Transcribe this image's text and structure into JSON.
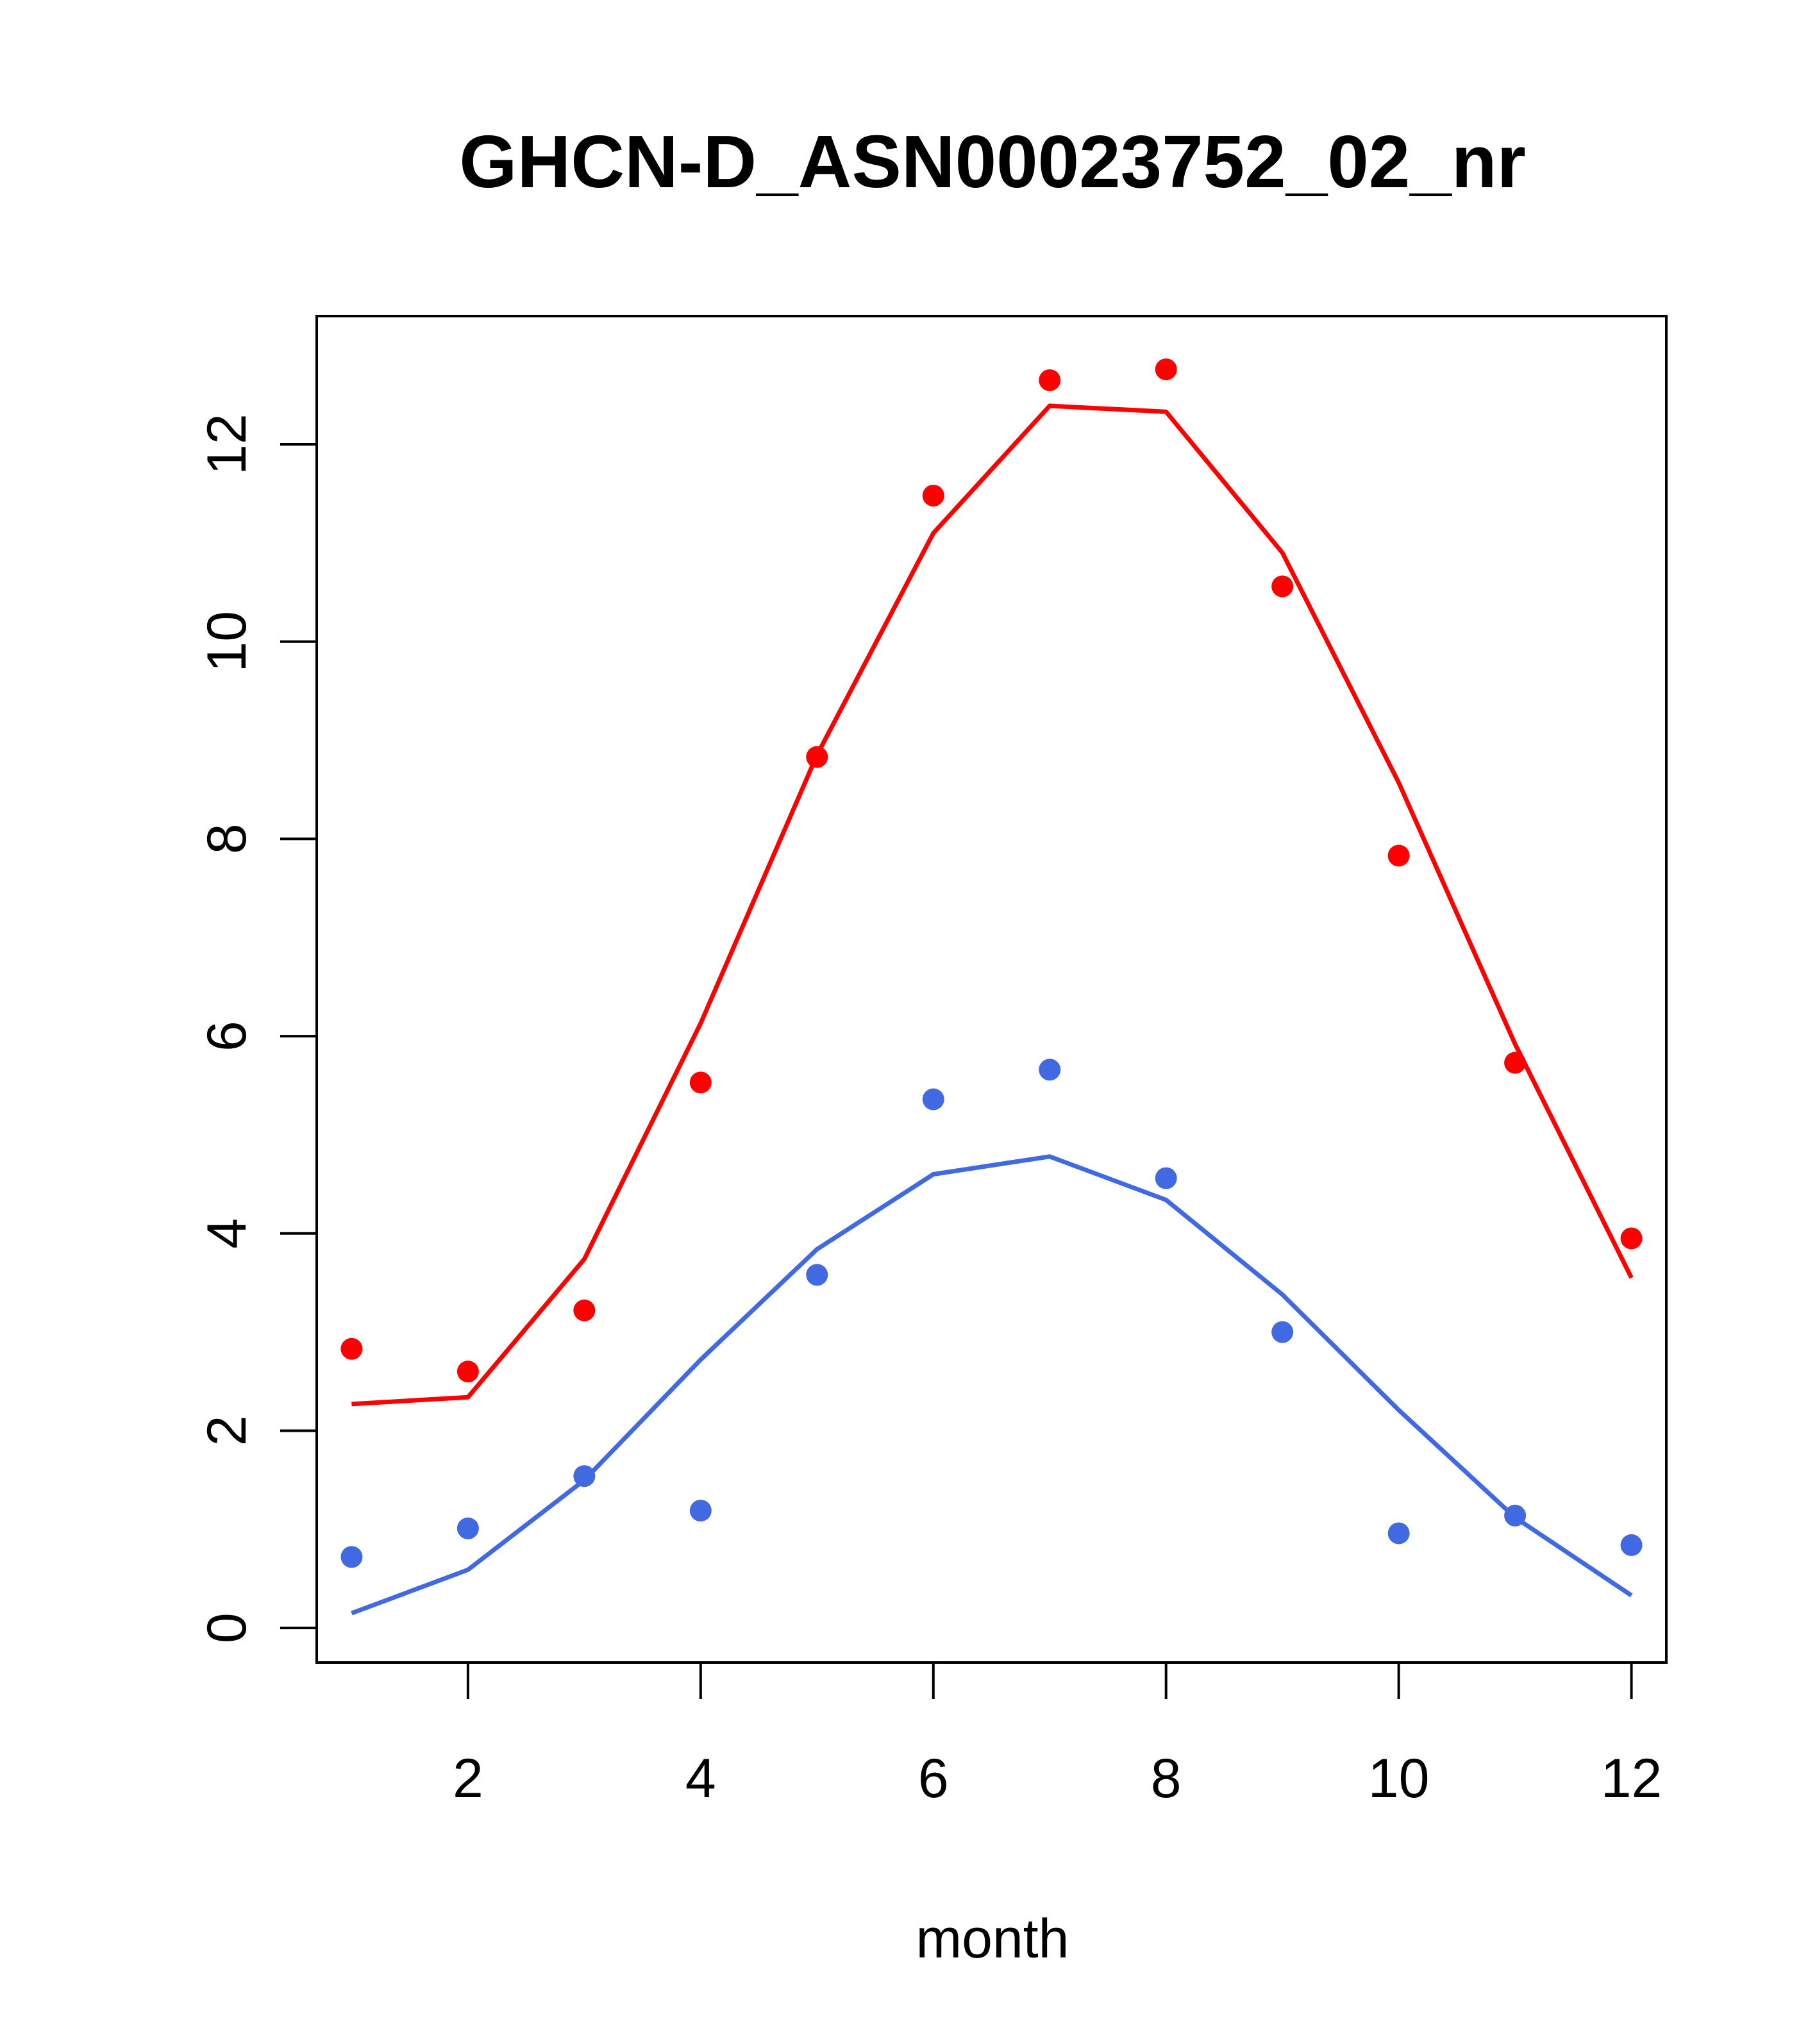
{
  "chart_data": {
    "type": "line",
    "title": "GHCN-D_ASN00023752_02_nr",
    "xlabel": "month",
    "ylabel": "",
    "xlim": [
      0.7,
      12.3
    ],
    "ylim": [
      -0.35,
      13.3
    ],
    "x_ticks": [
      2,
      4,
      6,
      8,
      10,
      12
    ],
    "y_ticks": [
      0,
      2,
      4,
      6,
      8,
      10,
      12
    ],
    "grid": false,
    "legend": "none",
    "x": [
      1,
      2,
      3,
      4,
      5,
      6,
      7,
      8,
      9,
      10,
      11,
      12
    ],
    "series": [
      {
        "color": "#ff0000",
        "points": [
          2.83,
          2.6,
          3.22,
          5.53,
          8.83,
          11.48,
          12.65,
          12.76,
          10.56,
          7.83,
          5.73,
          3.95
        ],
        "line": [
          2.27,
          2.34,
          3.74,
          6.13,
          8.85,
          11.1,
          12.39,
          12.33,
          10.9,
          8.57,
          5.92,
          3.55
        ]
      },
      {
        "color": "#4169e1",
        "points": [
          0.72,
          1.01,
          1.54,
          1.19,
          3.58,
          5.36,
          5.66,
          4.56,
          3.0,
          0.96,
          1.14,
          0.84
        ],
        "line": [
          0.15,
          0.59,
          1.5,
          2.72,
          3.84,
          4.6,
          4.78,
          4.34,
          3.38,
          2.21,
          1.12,
          0.33
        ]
      }
    ]
  }
}
